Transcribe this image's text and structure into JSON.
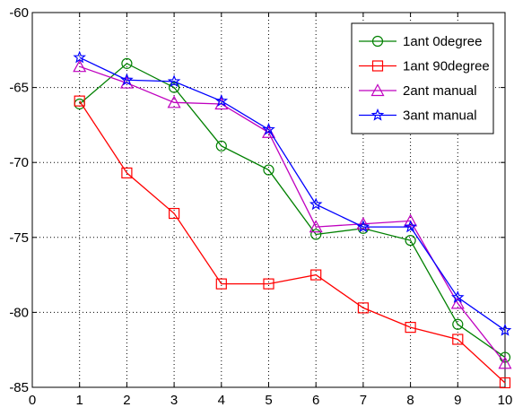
{
  "chart_data": {
    "type": "line",
    "x": [
      1,
      2,
      3,
      4,
      5,
      6,
      7,
      8,
      9,
      10
    ],
    "xlim": [
      0,
      10
    ],
    "ylim": [
      -85,
      -60
    ],
    "xticks": [
      "0",
      "1",
      "2",
      "3",
      "4",
      "5",
      "6",
      "7",
      "8",
      "9",
      "10"
    ],
    "yticks": [
      "-60",
      "-65",
      "-70",
      "-75",
      "-80",
      "-85"
    ],
    "grid": true,
    "legend_position": "top-right",
    "series": [
      {
        "name": "1ant 0degree",
        "color": "#008000",
        "marker": "circle",
        "values": [
          -66.1,
          -63.4,
          -65.0,
          -68.9,
          -70.5,
          -74.8,
          -74.4,
          -75.2,
          -80.8,
          -83.0
        ]
      },
      {
        "name": "1ant 90degree",
        "color": "#ff0000",
        "marker": "square",
        "values": [
          -65.9,
          -70.7,
          -73.4,
          -78.1,
          -78.1,
          -77.5,
          -79.7,
          -81.0,
          -81.8,
          -84.7
        ]
      },
      {
        "name": "2ant manual",
        "color": "#bf00bf",
        "marker": "triangle",
        "values": [
          -63.6,
          -64.7,
          -66.0,
          -66.1,
          -68.0,
          -74.3,
          -74.1,
          -73.9,
          -79.4,
          -83.4
        ]
      },
      {
        "name": "3ant manual",
        "color": "#0000ff",
        "marker": "star",
        "values": [
          -63.0,
          -64.5,
          -64.6,
          -65.9,
          -67.8,
          -72.8,
          -74.3,
          -74.3,
          -79.0,
          -81.2
        ]
      }
    ]
  }
}
